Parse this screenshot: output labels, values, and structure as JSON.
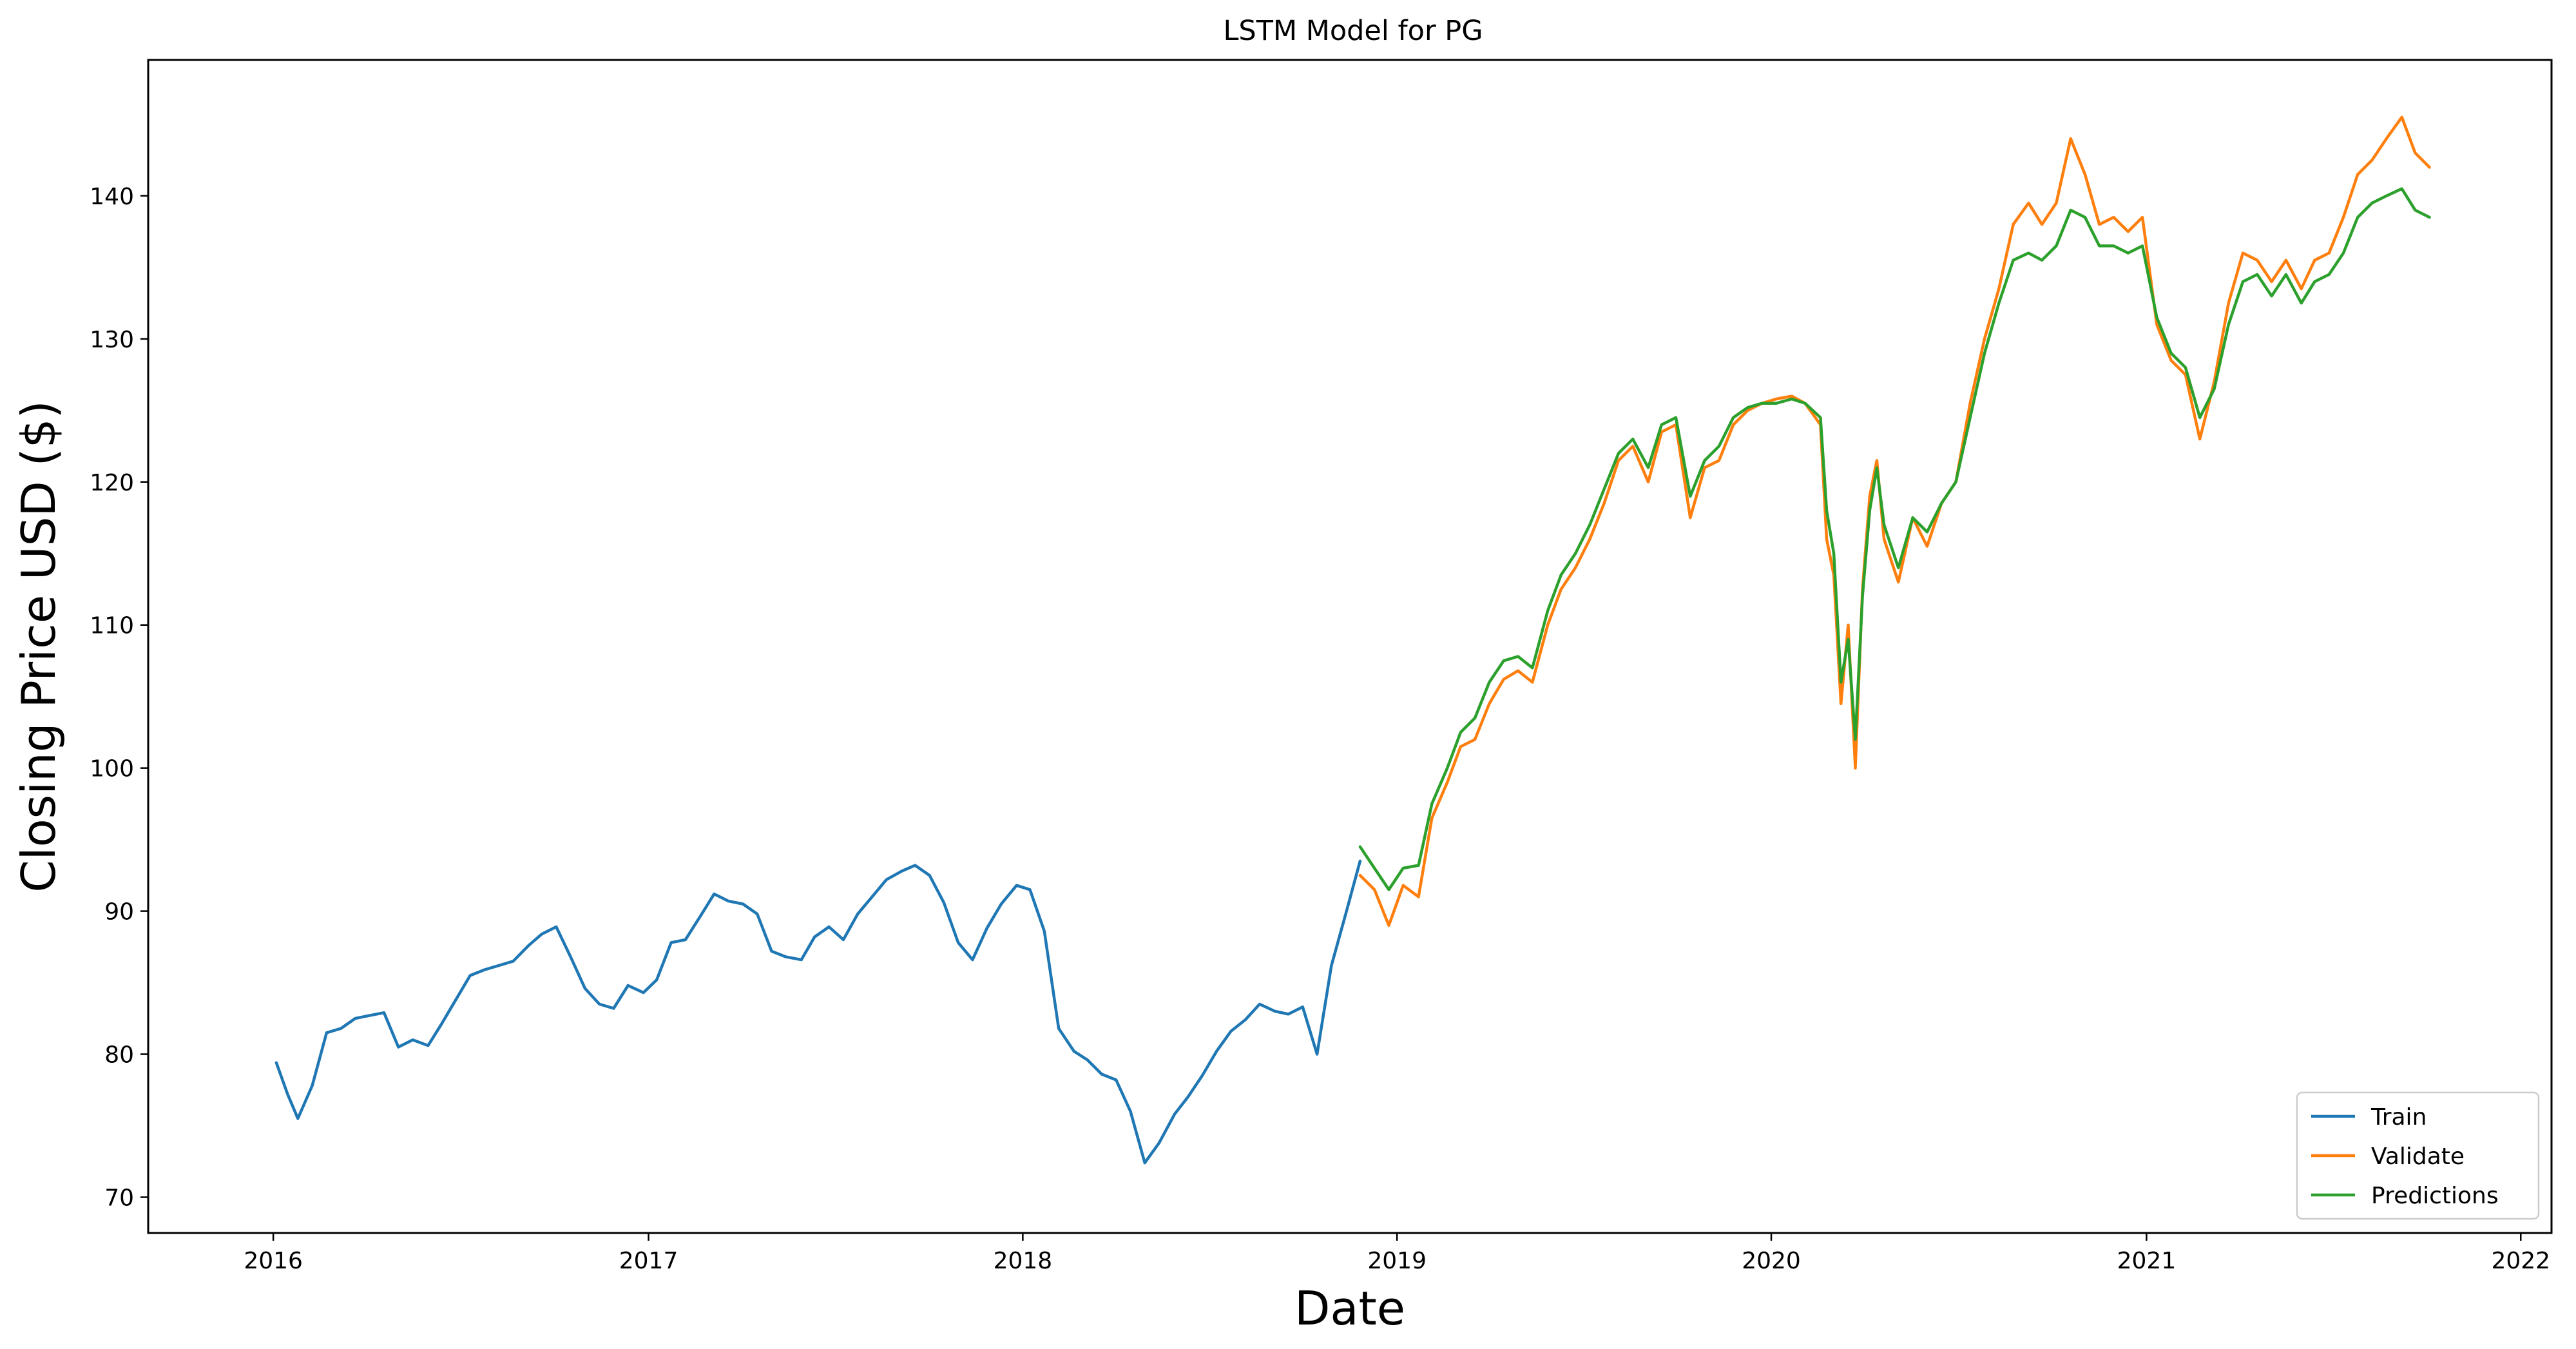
{
  "chart_data": {
    "type": "line",
    "title": "LSTM Model for PG",
    "xlabel": "Date",
    "ylabel": "Closing Price USD ($)",
    "xlim": [
      "2015-09-01",
      "2022-01-31"
    ],
    "ylim": [
      67.5,
      149.5
    ],
    "x_ticks": [
      "2016-01-01",
      "2017-01-01",
      "2018-01-01",
      "2019-01-01",
      "2020-01-01",
      "2021-01-01",
      "2022-01-01"
    ],
    "x_tick_labels": [
      "2016",
      "2017",
      "2018",
      "2019",
      "2020",
      "2021",
      "2022"
    ],
    "y_ticks": [
      70,
      80,
      90,
      100,
      110,
      120,
      130,
      140
    ],
    "y_tick_labels": [
      "70",
      "80",
      "90",
      "100",
      "110",
      "120",
      "130",
      "140"
    ],
    "grid": false,
    "legend_position": "lower-right",
    "series": [
      {
        "name": "Train",
        "color": "#1f77b4",
        "x": [
          "2016-01-04",
          "2016-01-15",
          "2016-01-25",
          "2016-02-08",
          "2016-02-22",
          "2016-03-07",
          "2016-03-21",
          "2016-04-04",
          "2016-04-18",
          "2016-05-02",
          "2016-05-16",
          "2016-05-31",
          "2016-06-13",
          "2016-06-27",
          "2016-07-11",
          "2016-07-25",
          "2016-08-08",
          "2016-08-22",
          "2016-09-06",
          "2016-09-19",
          "2016-10-03",
          "2016-10-17",
          "2016-10-31",
          "2016-11-14",
          "2016-11-28",
          "2016-12-12",
          "2016-12-27",
          "2017-01-09",
          "2017-01-23",
          "2017-02-06",
          "2017-02-21",
          "2017-03-06",
          "2017-03-20",
          "2017-04-03",
          "2017-04-17",
          "2017-05-01",
          "2017-05-15",
          "2017-05-30",
          "2017-06-12",
          "2017-06-26",
          "2017-07-10",
          "2017-07-24",
          "2017-08-07",
          "2017-08-21",
          "2017-09-05",
          "2017-09-18",
          "2017-10-02",
          "2017-10-16",
          "2017-10-30",
          "2017-11-13",
          "2017-11-27",
          "2017-12-11",
          "2017-12-26",
          "2018-01-08",
          "2018-01-22",
          "2018-02-05",
          "2018-02-20",
          "2018-03-05",
          "2018-03-19",
          "2018-04-02",
          "2018-04-16",
          "2018-04-30",
          "2018-05-14",
          "2018-05-29",
          "2018-06-11",
          "2018-06-25",
          "2018-07-09",
          "2018-07-23",
          "2018-08-06",
          "2018-08-20",
          "2018-09-04",
          "2018-09-17",
          "2018-10-01",
          "2018-10-15",
          "2018-10-29",
          "2018-11-12",
          "2018-11-26"
        ],
        "values": [
          79.4,
          77.2,
          75.5,
          77.8,
          81.5,
          81.8,
          82.5,
          82.7,
          82.9,
          80.5,
          81.0,
          80.6,
          82.1,
          83.8,
          85.5,
          85.9,
          86.2,
          86.5,
          87.6,
          88.4,
          88.9,
          86.8,
          84.6,
          83.5,
          83.2,
          84.8,
          84.3,
          85.2,
          87.8,
          88.0,
          89.7,
          91.2,
          90.7,
          90.5,
          89.8,
          87.2,
          86.8,
          86.6,
          88.2,
          88.9,
          88.0,
          89.8,
          91.0,
          92.2,
          92.8,
          93.2,
          92.5,
          90.6,
          87.8,
          86.6,
          88.8,
          90.5,
          91.8,
          91.5,
          88.6,
          81.8,
          80.2,
          79.6,
          78.6,
          78.2,
          76.0,
          72.4,
          73.8,
          75.8,
          77.0,
          78.5,
          80.2,
          81.6,
          82.4,
          83.5,
          83.0,
          82.8,
          83.3,
          80.0,
          86.2,
          89.8,
          93.5
        ]
      },
      {
        "name": "Validate",
        "color": "#ff7f0e",
        "x": [
          "2018-11-26",
          "2018-12-10",
          "2018-12-24",
          "2019-01-07",
          "2019-01-22",
          "2019-02-04",
          "2019-02-19",
          "2019-03-04",
          "2019-03-18",
          "2019-04-01",
          "2019-04-15",
          "2019-04-29",
          "2019-05-13",
          "2019-05-28",
          "2019-06-10",
          "2019-06-24",
          "2019-07-08",
          "2019-07-22",
          "2019-08-05",
          "2019-08-19",
          "2019-09-03",
          "2019-09-16",
          "2019-09-30",
          "2019-10-14",
          "2019-10-28",
          "2019-11-11",
          "2019-11-25",
          "2019-12-09",
          "2019-12-23",
          "2020-01-06",
          "2020-01-21",
          "2020-02-03",
          "2020-02-18",
          "2020-02-24",
          "2020-03-02",
          "2020-03-09",
          "2020-03-16",
          "2020-03-23",
          "2020-03-30",
          "2020-04-06",
          "2020-04-13",
          "2020-04-20",
          "2020-05-04",
          "2020-05-18",
          "2020-06-01",
          "2020-06-15",
          "2020-06-29",
          "2020-07-13",
          "2020-07-27",
          "2020-08-10",
          "2020-08-24",
          "2020-09-08",
          "2020-09-21",
          "2020-10-05",
          "2020-10-19",
          "2020-11-02",
          "2020-11-16",
          "2020-11-30",
          "2020-12-14",
          "2020-12-28",
          "2021-01-11",
          "2021-01-25",
          "2021-02-08",
          "2021-02-22",
          "2021-03-08",
          "2021-03-22",
          "2021-04-05",
          "2021-04-19",
          "2021-05-03",
          "2021-05-17",
          "2021-06-01",
          "2021-06-14",
          "2021-06-28",
          "2021-07-12",
          "2021-07-26",
          "2021-08-09",
          "2021-08-23",
          "2021-09-07",
          "2021-09-20",
          "2021-10-04"
        ],
        "values": [
          92.5,
          91.5,
          89.0,
          91.8,
          91.0,
          96.5,
          99.0,
          101.5,
          102.0,
          104.5,
          106.2,
          106.8,
          106.0,
          110.0,
          112.5,
          114.0,
          116.0,
          118.5,
          121.5,
          122.5,
          120.0,
          123.5,
          124.0,
          117.5,
          121.0,
          121.5,
          124.0,
          125.0,
          125.5,
          125.8,
          126.0,
          125.5,
          124.0,
          116.0,
          113.5,
          104.5,
          110.0,
          100.0,
          112.5,
          119.0,
          121.5,
          116.0,
          113.0,
          117.5,
          115.5,
          118.5,
          120.0,
          125.5,
          130.0,
          133.5,
          138.0,
          139.5,
          138.0,
          139.5,
          144.0,
          141.5,
          138.0,
          138.5,
          137.5,
          138.5,
          131.0,
          128.5,
          127.5,
          123.0,
          127.0,
          132.5,
          136.0,
          135.5,
          134.0,
          135.5,
          133.5,
          135.5,
          136.0,
          138.5,
          141.5,
          142.5,
          144.0,
          145.5,
          143.0,
          142.0
        ]
      },
      {
        "name": "Predictions",
        "color": "#2ca02c",
        "x": [
          "2018-11-26",
          "2018-12-10",
          "2018-12-24",
          "2019-01-07",
          "2019-01-22",
          "2019-02-04",
          "2019-02-19",
          "2019-03-04",
          "2019-03-18",
          "2019-04-01",
          "2019-04-15",
          "2019-04-29",
          "2019-05-13",
          "2019-05-28",
          "2019-06-10",
          "2019-06-24",
          "2019-07-08",
          "2019-07-22",
          "2019-08-05",
          "2019-08-19",
          "2019-09-03",
          "2019-09-16",
          "2019-09-30",
          "2019-10-14",
          "2019-10-28",
          "2019-11-11",
          "2019-11-25",
          "2019-12-09",
          "2019-12-23",
          "2020-01-06",
          "2020-01-21",
          "2020-02-03",
          "2020-02-18",
          "2020-02-24",
          "2020-03-02",
          "2020-03-09",
          "2020-03-16",
          "2020-03-23",
          "2020-03-30",
          "2020-04-06",
          "2020-04-13",
          "2020-04-20",
          "2020-05-04",
          "2020-05-18",
          "2020-06-01",
          "2020-06-15",
          "2020-06-29",
          "2020-07-13",
          "2020-07-27",
          "2020-08-10",
          "2020-08-24",
          "2020-09-08",
          "2020-09-21",
          "2020-10-05",
          "2020-10-19",
          "2020-11-02",
          "2020-11-16",
          "2020-11-30",
          "2020-12-14",
          "2020-12-28",
          "2021-01-11",
          "2021-01-25",
          "2021-02-08",
          "2021-02-22",
          "2021-03-08",
          "2021-03-22",
          "2021-04-05",
          "2021-04-19",
          "2021-05-03",
          "2021-05-17",
          "2021-06-01",
          "2021-06-14",
          "2021-06-28",
          "2021-07-12",
          "2021-07-26",
          "2021-08-09",
          "2021-08-23",
          "2021-09-07",
          "2021-09-20",
          "2021-10-04"
        ],
        "values": [
          94.5,
          93.0,
          91.5,
          93.0,
          93.2,
          97.5,
          100.0,
          102.5,
          103.5,
          106.0,
          107.5,
          107.8,
          107.0,
          111.0,
          113.5,
          115.0,
          117.0,
          119.5,
          122.0,
          123.0,
          121.0,
          124.0,
          124.5,
          119.0,
          121.5,
          122.5,
          124.5,
          125.2,
          125.5,
          125.5,
          125.8,
          125.5,
          124.5,
          118.0,
          115.0,
          106.0,
          109.0,
          102.0,
          112.0,
          118.0,
          121.0,
          117.0,
          114.0,
          117.5,
          116.5,
          118.5,
          120.0,
          124.5,
          129.0,
          132.5,
          135.5,
          136.0,
          135.5,
          136.5,
          139.0,
          138.5,
          136.5,
          136.5,
          136.0,
          136.5,
          131.5,
          129.0,
          128.0,
          124.5,
          126.5,
          131.0,
          134.0,
          134.5,
          133.0,
          134.5,
          132.5,
          134.0,
          134.5,
          136.0,
          138.5,
          139.5,
          140.0,
          140.5,
          139.0,
          138.5
        ]
      }
    ]
  }
}
